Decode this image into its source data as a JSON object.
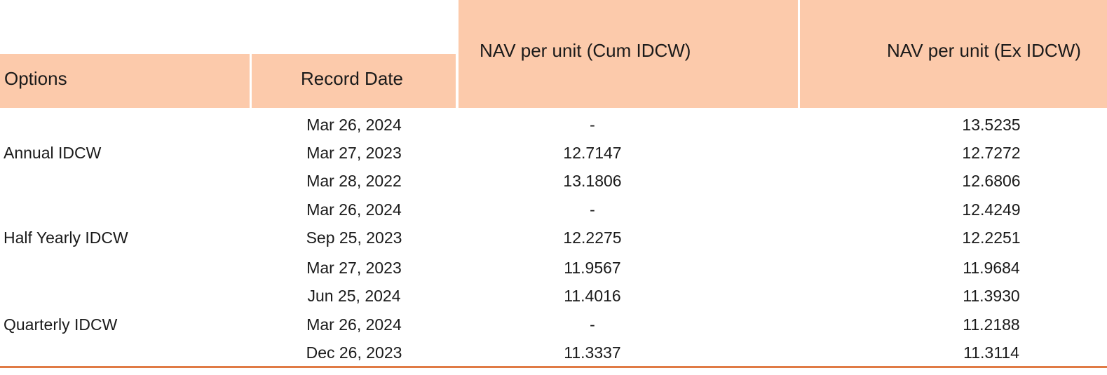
{
  "table": {
    "headers": {
      "options": "Options",
      "record_date": "Record Date",
      "nav_cum": "NAV per unit (Cum IDCW)",
      "nav_ex": "NAV per unit (Ex IDCW)"
    },
    "groups": [
      {
        "option": "Annual IDCW"
      },
      {
        "option": "Half Yearly IDCW"
      },
      {
        "option": "Quarterly IDCW"
      }
    ],
    "rows": [
      {
        "date": "Mar 26, 2024",
        "cum": "-",
        "ex": "13.5235"
      },
      {
        "date": "Mar 27, 2023",
        "cum": "12.7147",
        "ex": "12.7272"
      },
      {
        "date": "Mar 28, 2022",
        "cum": "13.1806",
        "ex": "12.6806"
      },
      {
        "date": "Mar 26, 2024",
        "cum": "-",
        "ex": "12.4249"
      },
      {
        "date": "Sep 25, 2023",
        "cum": "12.2275",
        "ex": "12.2251"
      },
      {
        "date": "Mar 27, 2023",
        "cum": "11.9567",
        "ex": "11.9684"
      },
      {
        "date": "Jun 25, 2024",
        "cum": "11.4016",
        "ex": "11.3930"
      },
      {
        "date": "Mar 26, 2024",
        "cum": "-",
        "ex": "11.2188"
      },
      {
        "date": "Dec 26, 2023",
        "cum": "11.3337",
        "ex": "11.3114"
      }
    ]
  },
  "colors": {
    "header_bg": "#fccaab",
    "bottom_rule": "#e07b45"
  }
}
